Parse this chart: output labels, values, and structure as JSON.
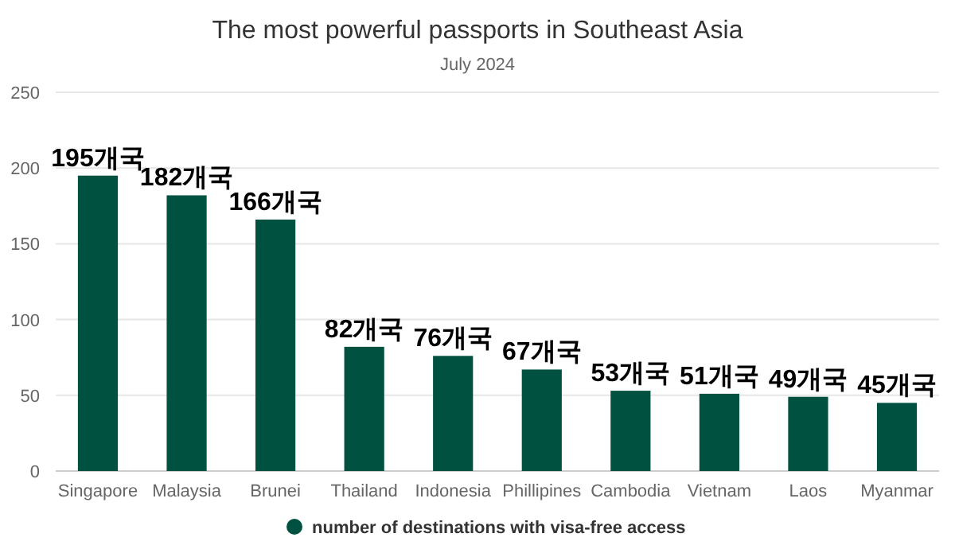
{
  "chart_data": {
    "type": "bar",
    "title": "The most powerful passports in Southeast Asia",
    "subtitle": "July 2024",
    "categories": [
      "Singapore",
      "Malaysia",
      "Brunei",
      "Thailand",
      "Indonesia",
      "Phillipines",
      "Cambodia",
      "Vietnam",
      "Laos",
      "Myanmar"
    ],
    "series": [
      {
        "name": "number of destinations with visa-free access",
        "color": "#00513f",
        "values": [
          195,
          182,
          166,
          82,
          76,
          67,
          53,
          51,
          49,
          45
        ],
        "value_labels": [
          "195개국",
          "182개국",
          "166개국",
          "82개국",
          "76개국",
          "67개국",
          "53개국",
          "51개국",
          "49개국",
          "45개국"
        ]
      }
    ],
    "ylim": [
      0,
      250
    ],
    "yticks": [
      0,
      50,
      100,
      150,
      200,
      250
    ],
    "grid": "y",
    "legend": "bottom"
  }
}
